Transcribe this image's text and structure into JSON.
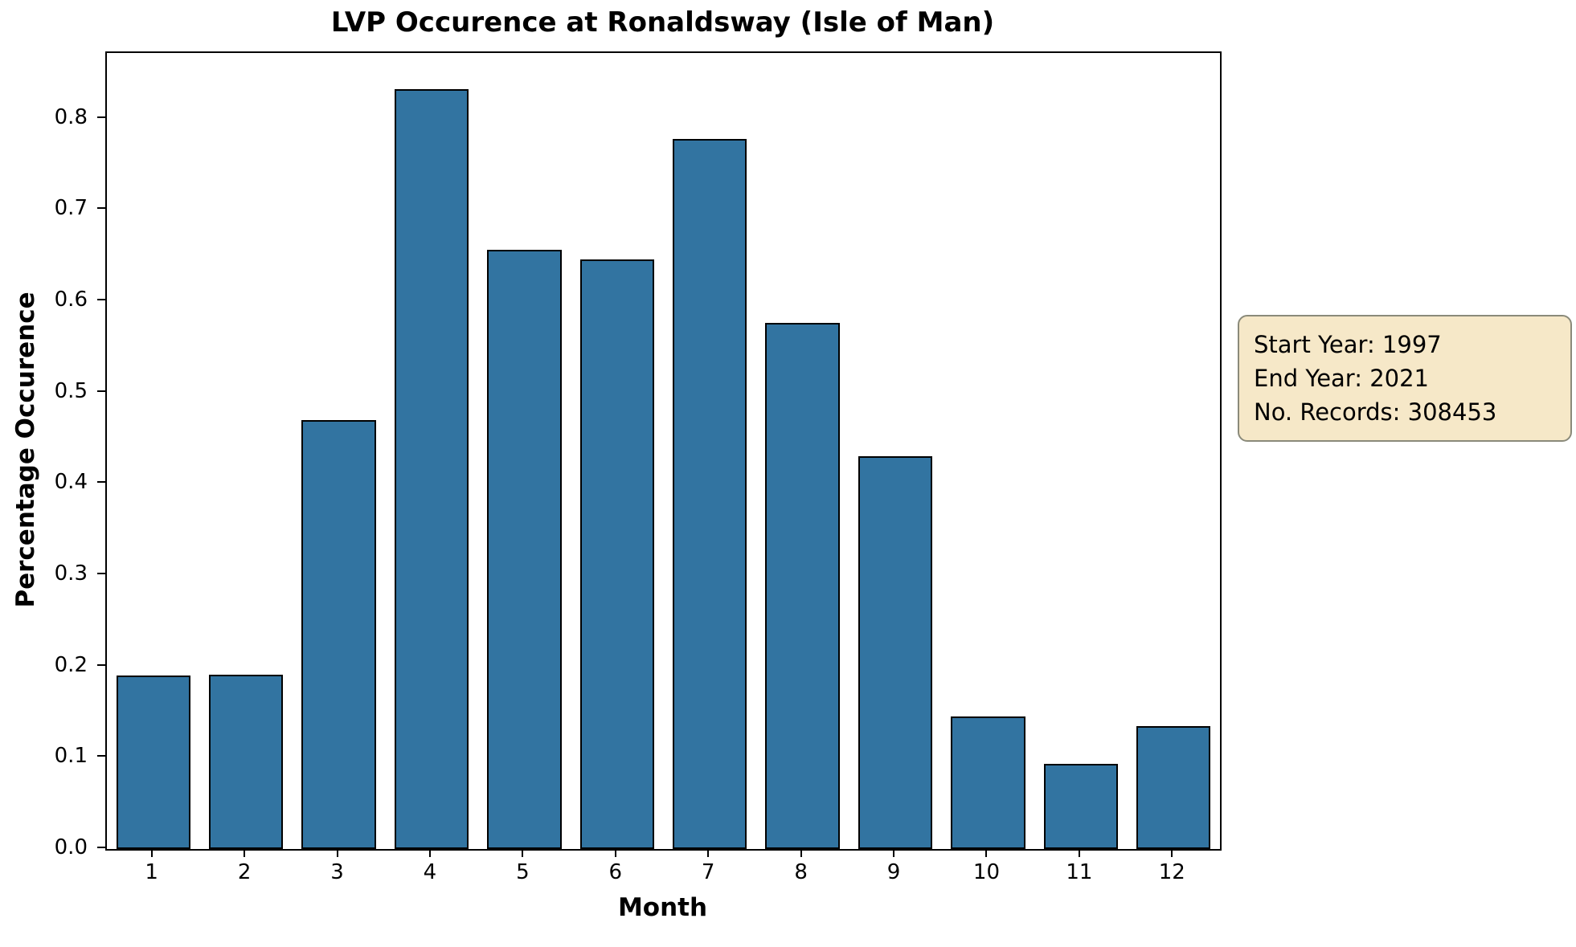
{
  "chart_data": {
    "type": "bar",
    "title": "LVP Occurence at Ronaldsway (Isle of Man)",
    "xlabel": "Month",
    "ylabel": "Percentage Occurence",
    "categories": [
      "1",
      "2",
      "3",
      "4",
      "5",
      "6",
      "7",
      "8",
      "9",
      "10",
      "11",
      "12"
    ],
    "values": [
      0.19,
      0.191,
      0.47,
      0.832,
      0.656,
      0.646,
      0.778,
      0.576,
      0.43,
      0.145,
      0.093,
      0.135
    ],
    "ylim": [
      0,
      0.872
    ],
    "yticks": [
      0.0,
      0.1,
      0.2,
      0.3,
      0.4,
      0.5,
      0.6,
      0.7,
      0.8
    ],
    "grid": false,
    "legend": null,
    "bar_color": "#3274a1",
    "bar_edge_color": "#000000",
    "bar_width_fraction": 0.8
  },
  "annotation": {
    "lines": [
      "Start Year: 1997",
      "End Year: 2021",
      "No. Records: 308453"
    ],
    "background": "#f6e8c8",
    "border_color": "#8a8a7a"
  }
}
